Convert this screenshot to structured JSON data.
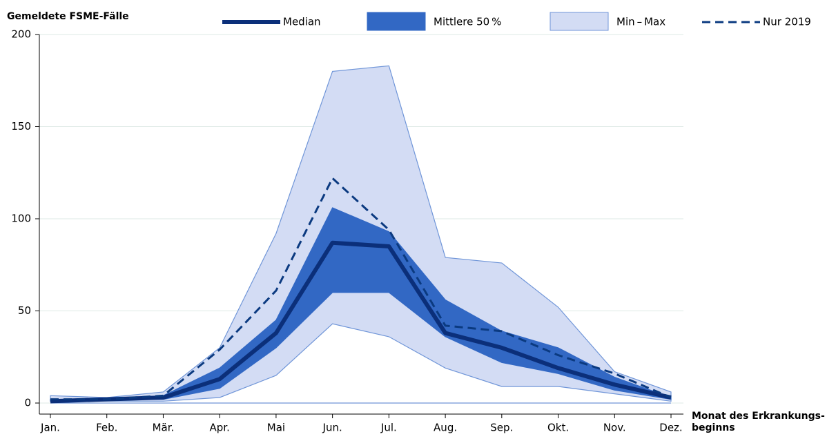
{
  "chart_data": {
    "type": "band-line",
    "title": "Gemeldete FSME-Fälle",
    "x_label": [
      "Monat des Erkrankungs-",
      "beginns"
    ],
    "categories": [
      "Jan.",
      "Feb.",
      "Mär.",
      "Apr.",
      "Mai",
      "Jun.",
      "Jul.",
      "Aug.",
      "Sep.",
      "Okt.",
      "Nov.",
      "Dez."
    ],
    "ylim": [
      0,
      200
    ],
    "yticks": [
      0,
      50,
      100,
      150,
      200
    ],
    "grid": true,
    "bands": [
      {
        "name": "Min – Max",
        "color": "#d3dcf4",
        "stroke": "#6f95d8",
        "low": [
          1,
          1,
          1,
          3,
          15,
          43,
          36,
          19,
          9,
          9,
          5,
          1
        ],
        "high": [
          4,
          3,
          6,
          30,
          92,
          180,
          183,
          79,
          76,
          52,
          17,
          6
        ]
      },
      {
        "name": "Mittlere 50 %",
        "color": "#3268c4",
        "stroke": "#3268c4",
        "low": [
          1,
          2,
          2,
          8,
          30,
          60,
          60,
          36,
          22,
          16,
          7,
          2
        ],
        "high": [
          2,
          2,
          4,
          19,
          45,
          106,
          93,
          56,
          39,
          30,
          14,
          3
        ]
      }
    ],
    "series": [
      {
        "name": "Median",
        "color": "#0b2f7a",
        "dash": false,
        "values": [
          1,
          2,
          3,
          13,
          38,
          87,
          85,
          38,
          30,
          19,
          10,
          3
        ]
      },
      {
        "name": "Nur 2019",
        "color": "#0b3a80",
        "dash": true,
        "values": [
          2,
          2,
          4,
          29,
          61,
          122,
          94,
          42,
          39,
          26,
          16,
          3
        ]
      }
    ]
  }
}
